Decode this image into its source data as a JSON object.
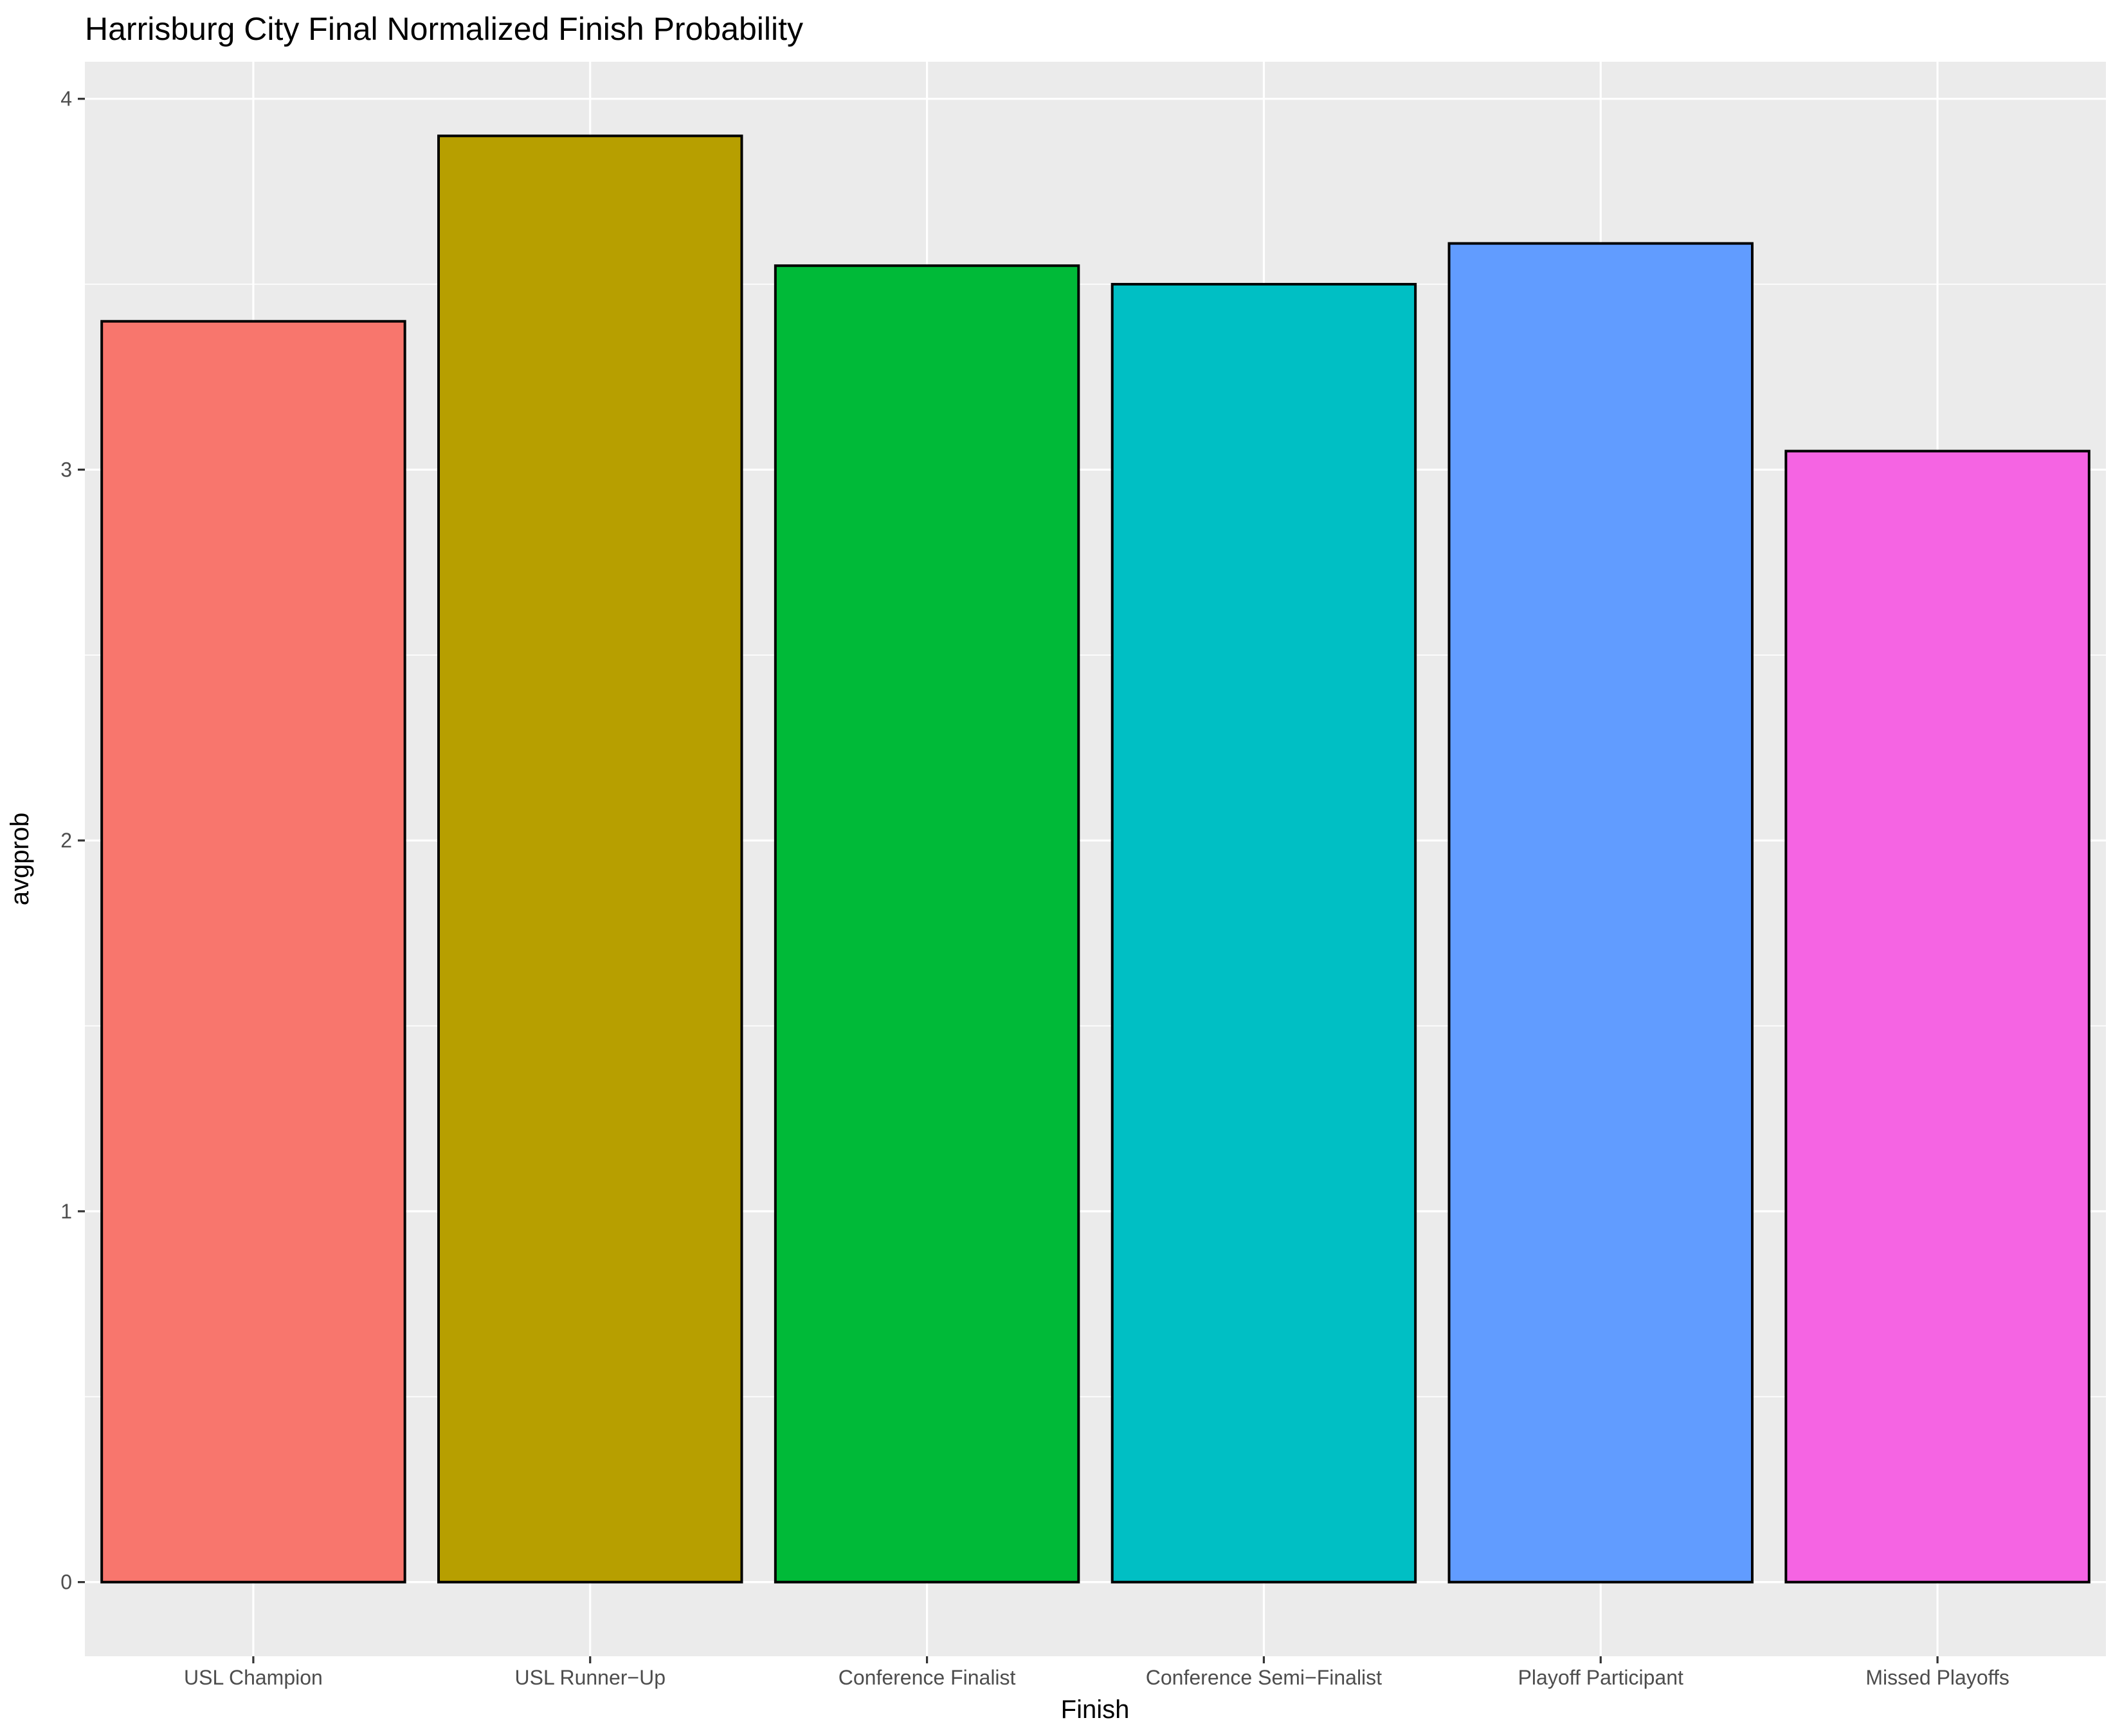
{
  "chart_data": {
    "type": "bar",
    "title": "Harrisburg City Final Normalized Finish Probability",
    "xlabel": "Finish",
    "ylabel": "avgprob",
    "categories": [
      "USL Champion",
      "USL Runner−Up",
      "Conference Finalist",
      "Conference Semi−Finalist",
      "Playoff Participant",
      "Missed Playoffs"
    ],
    "values": [
      3.4,
      3.9,
      3.55,
      3.5,
      3.61,
      3.05
    ],
    "colors": [
      "#F8766D",
      "#B79F00",
      "#00BA38",
      "#00BFC4",
      "#619CFF",
      "#F564E3"
    ],
    "ylim": [
      -0.2,
      4.1
    ],
    "yticks": [
      "0",
      "1",
      "2",
      "3",
      "4"
    ],
    "grid": true,
    "legend": "none",
    "panel_background": "#EBEBEB",
    "bar_outline": "#000000"
  }
}
